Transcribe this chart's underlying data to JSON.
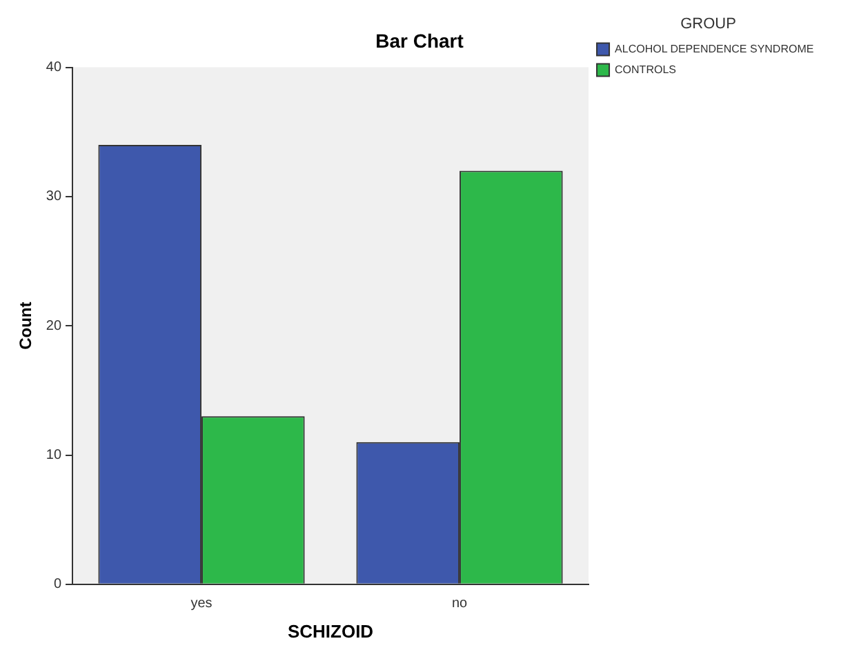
{
  "chart_data": {
    "type": "bar",
    "title": "Bar Chart",
    "xlabel": "SCHIZOID",
    "ylabel": "Count",
    "legend_title": "GROUP",
    "categories": [
      "yes",
      "no"
    ],
    "series": [
      {
        "name": "ALCOHOL DEPENDENCE SYNDROME",
        "color": "#3e58ac",
        "values": [
          34,
          11
        ]
      },
      {
        "name": "CONTROLS",
        "color": "#2db84a",
        "values": [
          13,
          32
        ]
      }
    ],
    "ylim": [
      0,
      40
    ],
    "yticks": [
      0,
      10,
      20,
      30,
      40
    ],
    "grid": false,
    "legend": "top right"
  }
}
